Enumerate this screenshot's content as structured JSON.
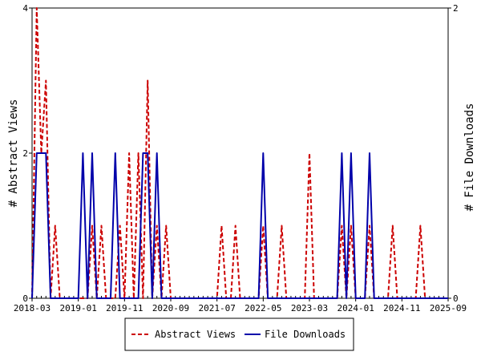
{
  "chart_data": {
    "type": "line",
    "title": "",
    "xlabel": "",
    "ylabel_left": "# Abstract Views",
    "ylabel_right": "# File Downloads",
    "xlim": [
      "2018-03",
      "2025-09"
    ],
    "x_ticks": [
      "2018-03",
      "2019-01",
      "2019-11",
      "2020-09",
      "2021-07",
      "2022-05",
      "2023-03",
      "2024-01",
      "2024-11",
      "2025-09"
    ],
    "y_left_ticks": [
      "0",
      "2",
      "4"
    ],
    "y_left_lim": [
      0,
      4
    ],
    "y_right_ticks": [
      "0",
      "2"
    ],
    "y_right_lim": [
      0,
      2
    ],
    "grid": false,
    "legend_position": "bottom",
    "series": [
      {
        "name": "Abstract Views",
        "color": "#cc0000",
        "style": "dashed",
        "axis": "left",
        "points": [
          [
            "2018-03",
            0
          ],
          [
            "2018-04",
            4
          ],
          [
            "2018-05",
            2
          ],
          [
            "2018-06",
            3
          ],
          [
            "2018-07",
            0
          ],
          [
            "2018-08",
            1
          ],
          [
            "2018-09",
            0
          ],
          [
            "2019-02",
            0
          ],
          [
            "2019-03",
            0
          ],
          [
            "2019-04",
            1
          ],
          [
            "2019-05",
            0
          ],
          [
            "2019-06",
            1
          ],
          [
            "2019-07",
            0
          ],
          [
            "2019-09",
            0
          ],
          [
            "2019-10",
            1
          ],
          [
            "2019-11",
            0
          ],
          [
            "2019-12",
            2
          ],
          [
            "2020-01",
            0
          ],
          [
            "2020-02",
            2
          ],
          [
            "2020-03",
            0
          ],
          [
            "2020-04",
            3
          ],
          [
            "2020-05",
            0
          ],
          [
            "2020-06",
            1
          ],
          [
            "2020-07",
            0
          ],
          [
            "2020-08",
            1
          ],
          [
            "2020-09",
            0
          ],
          [
            "2021-07",
            0
          ],
          [
            "2021-08",
            1
          ],
          [
            "2021-09",
            0
          ],
          [
            "2021-10",
            0
          ],
          [
            "2021-11",
            1
          ],
          [
            "2021-12",
            0
          ],
          [
            "2022-04",
            0
          ],
          [
            "2022-05",
            1
          ],
          [
            "2022-06",
            0
          ],
          [
            "2022-08",
            0
          ],
          [
            "2022-09",
            1
          ],
          [
            "2022-10",
            0
          ],
          [
            "2023-02",
            0
          ],
          [
            "2023-03",
            2
          ],
          [
            "2023-04",
            0
          ],
          [
            "2023-09",
            0
          ],
          [
            "2023-10",
            1
          ],
          [
            "2023-11",
            0
          ],
          [
            "2023-12",
            1
          ],
          [
            "2024-01",
            0
          ],
          [
            "2024-03",
            0
          ],
          [
            "2024-04",
            1
          ],
          [
            "2024-05",
            0
          ],
          [
            "2024-08",
            0
          ],
          [
            "2024-09",
            1
          ],
          [
            "2024-10",
            0
          ],
          [
            "2025-02",
            0
          ],
          [
            "2025-03",
            1
          ],
          [
            "2025-04",
            0
          ],
          [
            "2025-09",
            0
          ]
        ]
      },
      {
        "name": "File Downloads",
        "color": "#0000aa",
        "style": "solid",
        "axis": "right",
        "points": [
          [
            "2018-03",
            0
          ],
          [
            "2018-04",
            1
          ],
          [
            "2018-05",
            1
          ],
          [
            "2018-06",
            1
          ],
          [
            "2018-07",
            0
          ],
          [
            "2019-01",
            0
          ],
          [
            "2019-02",
            1
          ],
          [
            "2019-03",
            0
          ],
          [
            "2019-04",
            1
          ],
          [
            "2019-05",
            0
          ],
          [
            "2019-08",
            0
          ],
          [
            "2019-09",
            1
          ],
          [
            "2019-10",
            0
          ],
          [
            "2020-02",
            0
          ],
          [
            "2020-03",
            1
          ],
          [
            "2020-04",
            1
          ],
          [
            "2020-05",
            0
          ],
          [
            "2020-06",
            1
          ],
          [
            "2020-07",
            0
          ],
          [
            "2022-04",
            0
          ],
          [
            "2022-05",
            1
          ],
          [
            "2022-06",
            0
          ],
          [
            "2023-09",
            0
          ],
          [
            "2023-10",
            1
          ],
          [
            "2023-11",
            0
          ],
          [
            "2023-12",
            1
          ],
          [
            "2024-01",
            0
          ],
          [
            "2024-03",
            0
          ],
          [
            "2024-04",
            1
          ],
          [
            "2024-05",
            0
          ],
          [
            "2025-09",
            0
          ]
        ]
      }
    ]
  }
}
